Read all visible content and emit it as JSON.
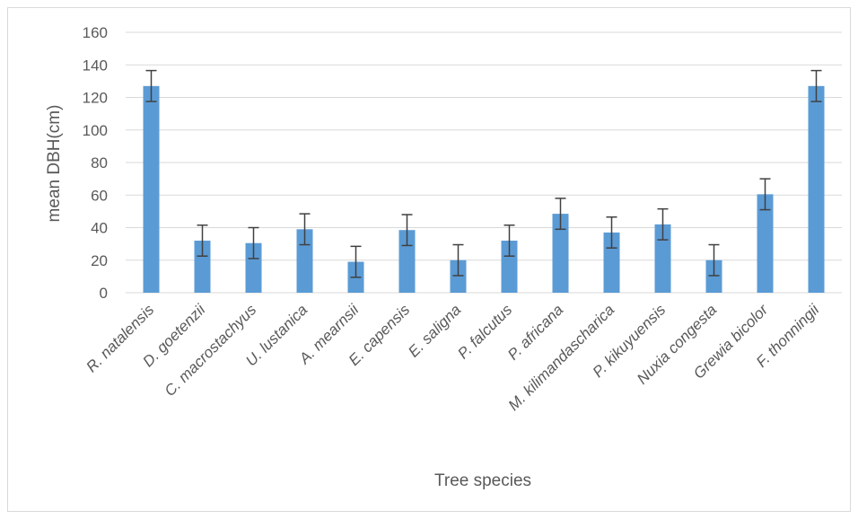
{
  "chart_data": {
    "type": "bar",
    "title": "",
    "xlabel": "Tree species",
    "ylabel": "mean DBH(cm)",
    "ylim": [
      0,
      160
    ],
    "yticks": [
      0,
      20,
      40,
      60,
      80,
      100,
      120,
      140,
      160
    ],
    "grid": true,
    "legend": "none",
    "bar_color": "#5b9bd5",
    "error_bar_color": "#404040",
    "categories": [
      "R. natalensis",
      "D. goetenzii",
      "C. macrostachyus",
      "U. lustanica",
      "A. mearnsii",
      "E. capensis",
      "E. saligna",
      "P. falcutus",
      "P. africana",
      "M. kilimandascharica",
      "P. kikuyuensis",
      "Nuxia congesta",
      "Grewia bicolor",
      "F. thonningii"
    ],
    "values": [
      127,
      32,
      30.5,
      39,
      19,
      38.5,
      20,
      32,
      48.5,
      37,
      42,
      20,
      60.5,
      127
    ],
    "error": [
      9.5,
      9.5,
      9.5,
      9.5,
      9.5,
      9.5,
      9.5,
      9.5,
      9.5,
      9.5,
      9.5,
      9.5,
      9.5,
      9.5
    ]
  }
}
